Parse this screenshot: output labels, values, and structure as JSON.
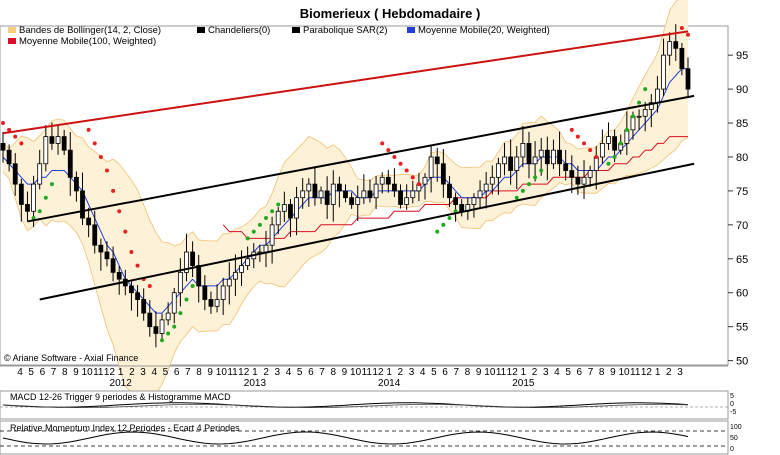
{
  "title": "Biomerieux   ( Hebdomadaire )",
  "copyright": "© Ariane Software - Axial Finance",
  "legend": [
    {
      "label": "Bandes de Bollinger(14, 2, Close)",
      "color": "#f5cc80"
    },
    {
      "label": "Chandeliers(0)",
      "color": "#000000"
    },
    {
      "label": "Parabolique SAR(2)",
      "color": "#000000"
    },
    {
      "label": "Moyenne Mobile(20, Weighted)",
      "color": "#1f3fd8"
    },
    {
      "label": "Moyenne Mobile(100, Weighted)",
      "color": "#d8102a"
    }
  ],
  "colors": {
    "bollinger_fill": "#fdf2d8",
    "bollinger_line": "#f0c070",
    "ma20": "#1f3fd8",
    "ma100": "#d81020",
    "sar_up": "#22aa22",
    "sar_down": "#e82020",
    "channel_upper": "#cc1111",
    "channel_black": "#000000"
  },
  "x_month_labels": [
    "4",
    "5",
    "6",
    "7",
    "8",
    "9",
    "10",
    "11",
    "12",
    "1",
    "2",
    "3",
    "4",
    "5",
    "6",
    "7",
    "8",
    "9",
    "10",
    "11",
    "12",
    "1",
    "2",
    "3",
    "4",
    "5",
    "6",
    "7",
    "8",
    "9",
    "10",
    "11",
    "12",
    "1",
    "2",
    "3",
    "4",
    "5",
    "6",
    "7",
    "8",
    "9",
    "10",
    "11",
    "12",
    "1",
    "2",
    "3",
    "4",
    "5",
    "6",
    "7",
    "8",
    "9",
    "10",
    "11",
    "12",
    "1",
    "2",
    "3"
  ],
  "x_year_labels": [
    "2012",
    "2013",
    "2014",
    "2015"
  ],
  "macd_panel": {
    "label": "MACD 12-26   Trigger 9 periodes & Histogramme MACD",
    "ticks": [
      "5",
      "0",
      "-5"
    ]
  },
  "rmi_panel": {
    "label": "Relative Momentum Index 12 Periodes - Ecart 4 Periodes",
    "ticks": [
      "100",
      "50",
      "0"
    ]
  },
  "chart_data": {
    "type": "candlestick",
    "title": "Biomerieux   ( Hebdomadaire )",
    "y_axis": {
      "ticks": [
        50,
        55,
        60,
        65,
        70,
        75,
        80,
        85,
        90,
        95
      ],
      "ylim": [
        49.5,
        99
      ]
    },
    "x_axis": {
      "start": "2011-04",
      "end": "2015-03",
      "period": "weekly"
    },
    "series": [
      {
        "name": "Chandeliers(0)",
        "kind": "close",
        "values": [
          81,
          79,
          76,
          73,
          72,
          76,
          79,
          83,
          82,
          83,
          81,
          77,
          75,
          71,
          70,
          67,
          66,
          65,
          63,
          62,
          61,
          60,
          59,
          57,
          55,
          54,
          56,
          57,
          60,
          63,
          66,
          64,
          61,
          59,
          58,
          59,
          61,
          62,
          63,
          64,
          65,
          66,
          66,
          67,
          70,
          72,
          73,
          71,
          74,
          75,
          76,
          74,
          75,
          73,
          76,
          75,
          74,
          73,
          74,
          75,
          74,
          76,
          77,
          76,
          75,
          73,
          74,
          75,
          76,
          77,
          80,
          79,
          76,
          74,
          73,
          72,
          73,
          74,
          75,
          76,
          77,
          79,
          80,
          78,
          80,
          82,
          79,
          80,
          81,
          79,
          81,
          79,
          78,
          77,
          76,
          77,
          78,
          80,
          82,
          83,
          81,
          82,
          84,
          86,
          86,
          87,
          88,
          90,
          95,
          97,
          96,
          93,
          90
        ]
      },
      {
        "name": "Moyenne Mobile(20, Weighted)",
        "kind": "line",
        "values": [
          80,
          79,
          78,
          77,
          76,
          76,
          77,
          77,
          78,
          78,
          78,
          77,
          76,
          75,
          73,
          71,
          69,
          67,
          66,
          64,
          62,
          61,
          60,
          59,
          58,
          57,
          57,
          58,
          59,
          60,
          61,
          62,
          61,
          61,
          61,
          61,
          62,
          62,
          63,
          64,
          65,
          66,
          67,
          67,
          68,
          69,
          70,
          71,
          72,
          73,
          74,
          74,
          74,
          74,
          75,
          75,
          75,
          75,
          74,
          74,
          74,
          75,
          75,
          75,
          75,
          75,
          75,
          75,
          75,
          76,
          77,
          77,
          77,
          76,
          75,
          74,
          74,
          74,
          74,
          75,
          75,
          76,
          77,
          77,
          78,
          79,
          79,
          79,
          80,
          80,
          80,
          80,
          79,
          79,
          78,
          78,
          78,
          78,
          79,
          80,
          80,
          81,
          82,
          83,
          84,
          85,
          86,
          87,
          89,
          91,
          92,
          93,
          93
        ]
      },
      {
        "name": "Moyenne Mobile(100, Weighted)",
        "kind": "line",
        "values": [
          null,
          null,
          null,
          null,
          null,
          null,
          null,
          null,
          null,
          null,
          null,
          null,
          null,
          null,
          null,
          null,
          null,
          null,
          null,
          null,
          null,
          null,
          null,
          null,
          null,
          null,
          null,
          null,
          null,
          null,
          null,
          null,
          null,
          null,
          null,
          null,
          70,
          69,
          69,
          69,
          68,
          68,
          68,
          68,
          68,
          68,
          68,
          69,
          69,
          69,
          69,
          69,
          70,
          70,
          70,
          70,
          70,
          70,
          71,
          71,
          71,
          71,
          71,
          71,
          72,
          72,
          72,
          72,
          72,
          73,
          73,
          73,
          73,
          73,
          74,
          74,
          74,
          74,
          74,
          74,
          75,
          75,
          75,
          75,
          75,
          76,
          76,
          76,
          76,
          76,
          77,
          77,
          77,
          77,
          77,
          77,
          78,
          78,
          78,
          78,
          79,
          79,
          79,
          80,
          80,
          81,
          81,
          82,
          82,
          83,
          83,
          83,
          83
        ]
      }
    ],
    "sar_down": [
      [
        0,
        85
      ],
      [
        1,
        84
      ],
      [
        2,
        83
      ],
      [
        3,
        82
      ],
      [
        14,
        84
      ],
      [
        15,
        82
      ],
      [
        16,
        80
      ],
      [
        17,
        78
      ],
      [
        18,
        75
      ],
      [
        19,
        72
      ],
      [
        20,
        69
      ],
      [
        21,
        66
      ],
      [
        22,
        64
      ],
      [
        23,
        62
      ],
      [
        24,
        61
      ],
      [
        62,
        82
      ],
      [
        63,
        81
      ],
      [
        64,
        80
      ],
      [
        65,
        79
      ],
      [
        66,
        78
      ],
      [
        67,
        77
      ],
      [
        68,
        76
      ],
      [
        93,
        84
      ],
      [
        94,
        83
      ],
      [
        95,
        82
      ],
      [
        96,
        81
      ],
      [
        97,
        80
      ],
      [
        111,
        99
      ],
      [
        112,
        98
      ]
    ],
    "sar_up": [
      [
        5,
        71
      ],
      [
        6,
        72
      ],
      [
        7,
        74
      ],
      [
        8,
        76
      ],
      [
        26,
        53
      ],
      [
        27,
        54
      ],
      [
        28,
        55
      ],
      [
        29,
        57
      ],
      [
        30,
        59
      ],
      [
        31,
        61
      ],
      [
        40,
        68
      ],
      [
        41,
        69
      ],
      [
        42,
        70
      ],
      [
        43,
        71
      ],
      [
        44,
        72
      ],
      [
        45,
        73
      ],
      [
        71,
        69
      ],
      [
        72,
        70
      ],
      [
        73,
        71
      ],
      [
        74,
        72
      ],
      [
        84,
        74
      ],
      [
        85,
        75
      ],
      [
        86,
        76
      ],
      [
        87,
        77
      ],
      [
        88,
        78
      ],
      [
        99,
        79
      ],
      [
        100,
        80
      ],
      [
        101,
        82
      ],
      [
        102,
        84
      ],
      [
        103,
        86
      ],
      [
        104,
        88
      ],
      [
        105,
        90
      ]
    ],
    "trendlines": [
      {
        "name": "upper",
        "color": "#cc1111",
        "from": [
          0,
          83.5
        ],
        "to": [
          112,
          98.5
        ]
      },
      {
        "name": "channel-top",
        "color": "#000000",
        "from": [
          4,
          70.5
        ],
        "to": [
          113,
          89
        ]
      },
      {
        "name": "channel-bottom",
        "color": "#000000",
        "from": [
          6,
          59
        ],
        "to": [
          113,
          79
        ]
      }
    ]
  }
}
